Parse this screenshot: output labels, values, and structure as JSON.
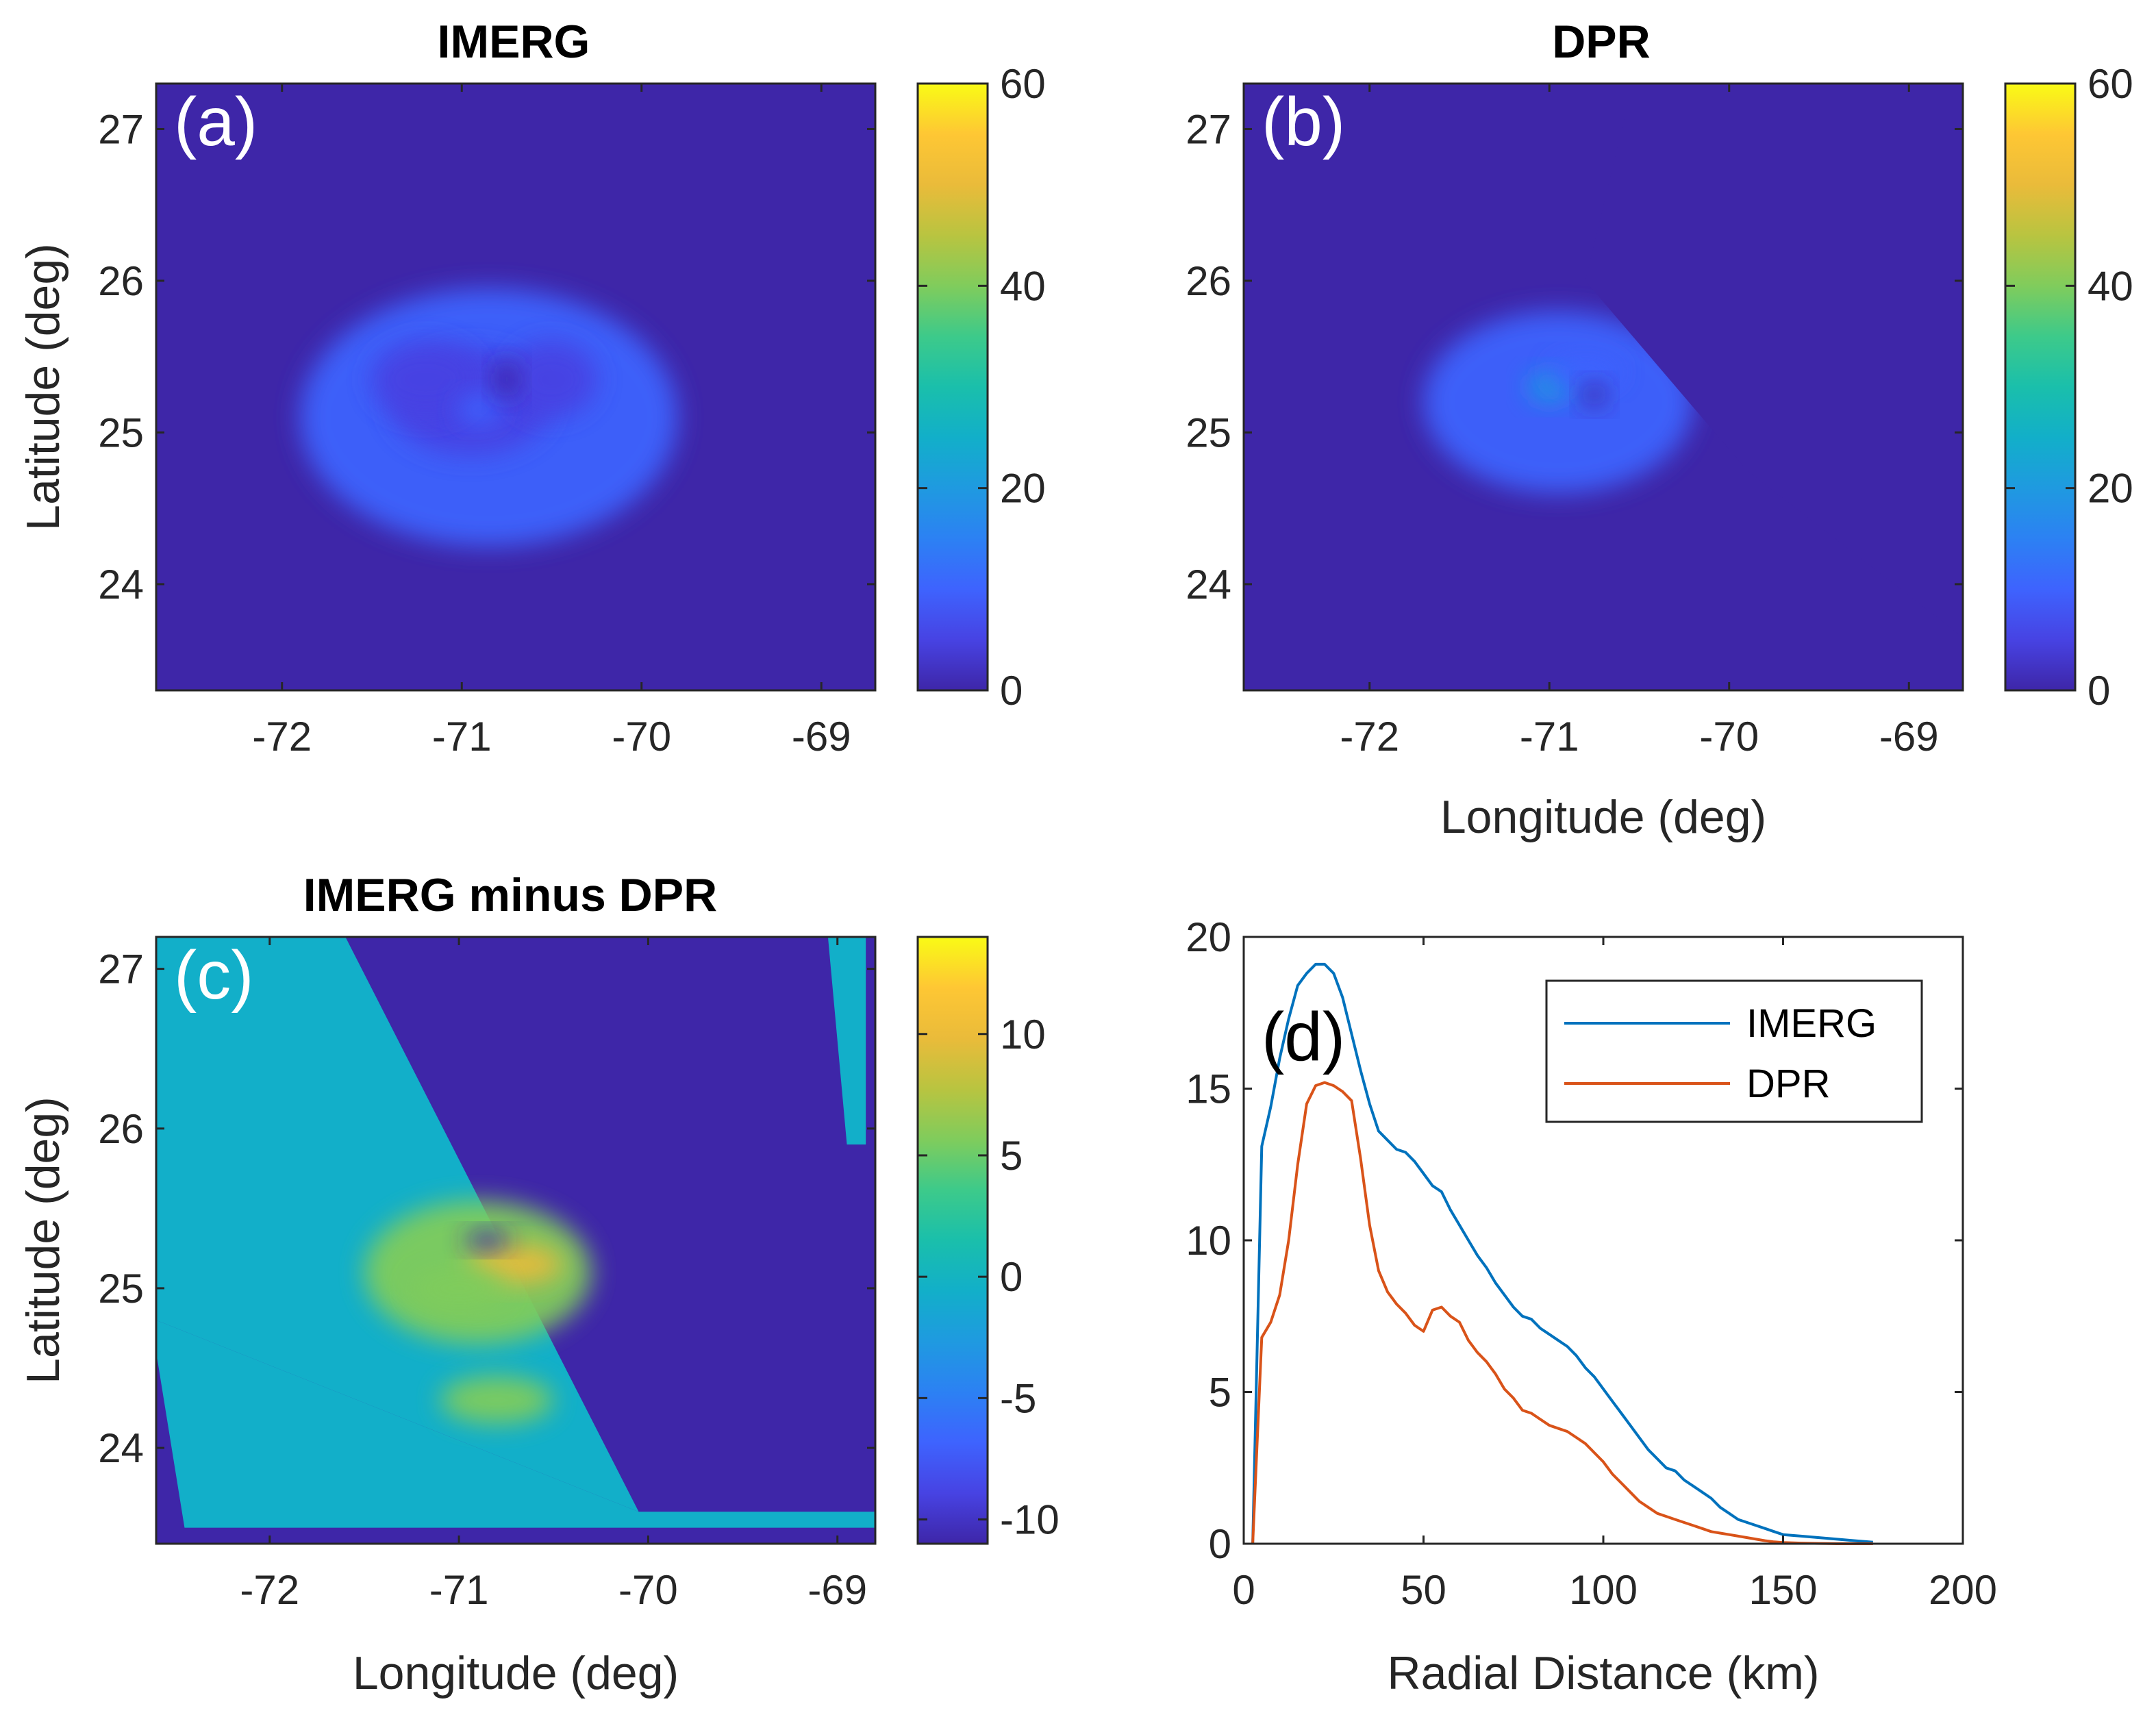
{
  "colors": {
    "parula": [
      "#3e26a8",
      "#4743e3",
      "#3e63fe",
      "#2c81f3",
      "#1f9ae0",
      "#12afc9",
      "#1abfab",
      "#3dca8a",
      "#80cc5c",
      "#b9c440",
      "#eabb3a",
      "#fec734",
      "#f9fb15"
    ],
    "imerg": "#0072bd",
    "dpr": "#d95319",
    "axis": "#262626"
  },
  "chart_data": [
    {
      "id": "a",
      "type": "heatmap",
      "panel_label": "(a)",
      "title": "IMERG",
      "xlabel": "",
      "ylabel": "Latitude (deg)",
      "xlim": [
        -72.7,
        -68.7
      ],
      "ylim": [
        23.3,
        27.3
      ],
      "xticks": [
        -72,
        -71,
        -70,
        -69
      ],
      "xticklabels": [
        "-72",
        "-71",
        "-70",
        "-69"
      ],
      "yticks": [
        24,
        25,
        26,
        27
      ],
      "yticklabels": [
        "24",
        "25",
        "26",
        "27"
      ],
      "clim": [
        0,
        60
      ],
      "cticks": [
        0,
        20,
        40,
        60
      ],
      "cticklabels": [
        "0",
        "20",
        "40",
        "60"
      ],
      "field": {
        "background": 0,
        "blobs": [
          {
            "lon": -70.85,
            "lat": 25.1,
            "rx": 1.05,
            "ry": 0.85,
            "v": 8
          },
          {
            "lon": -70.95,
            "lat": 25.2,
            "rx": 0.45,
            "ry": 0.35,
            "v": 6
          },
          {
            "lon": -70.5,
            "lat": 25.35,
            "rx": 0.25,
            "ry": 0.25,
            "v": 4
          },
          {
            "lon": -71.2,
            "lat": 25.35,
            "rx": 0.3,
            "ry": 0.25,
            "v": 3
          },
          {
            "lon": -70.9,
            "lat": 25.15,
            "rx": 0.12,
            "ry": 0.1,
            "v": 8
          },
          {
            "lon": -70.75,
            "lat": 25.35,
            "rx": 0.07,
            "ry": 0.12,
            "v": -8
          }
        ]
      }
    },
    {
      "id": "b",
      "type": "heatmap",
      "panel_label": "(b)",
      "title": "DPR",
      "xlabel": "Longitude (deg)",
      "ylabel": "",
      "xlim": [
        -72.7,
        -68.7
      ],
      "ylim": [
        23.3,
        27.3
      ],
      "xticks": [
        -72,
        -71,
        -70,
        -69
      ],
      "xticklabels": [
        "-72",
        "-71",
        "-70",
        "-69"
      ],
      "yticks": [
        24,
        25,
        26,
        27
      ],
      "yticklabels": [
        "24",
        "25",
        "26",
        "27"
      ],
      "clim": [
        0,
        60
      ],
      "cticks": [
        0,
        20,
        40,
        60
      ],
      "cticklabels": [
        "0",
        "20",
        "40",
        "60"
      ],
      "field": {
        "background": 0,
        "swath_edge": [
          [
            -70.8,
            26.0
          ],
          [
            -69.9,
            24.75
          ]
        ],
        "blobs": [
          {
            "lon": -70.95,
            "lat": 25.2,
            "rx": 0.75,
            "ry": 0.6,
            "v": 9
          },
          {
            "lon": -71.0,
            "lat": 25.3,
            "rx": 0.12,
            "ry": 0.1,
            "v": 20
          },
          {
            "lon": -70.8,
            "lat": 25.4,
            "rx": 0.2,
            "ry": 0.1,
            "v": 9
          },
          {
            "lon": -70.75,
            "lat": 25.25,
            "rx": 0.07,
            "ry": 0.08,
            "v": -9
          }
        ]
      }
    },
    {
      "id": "c",
      "type": "heatmap",
      "panel_label": "(c)",
      "title": "IMERG minus DPR",
      "xlabel": "Longitude (deg)",
      "ylabel": "Latitude (deg)",
      "xlim": [
        -72.6,
        -68.8
      ],
      "ylim": [
        23.4,
        27.2
      ],
      "xticks": [
        -72,
        -71,
        -70,
        -69
      ],
      "xticklabels": [
        "-72",
        "-71",
        "-70",
        "-69"
      ],
      "yticks": [
        24,
        25,
        26,
        27
      ],
      "yticklabels": [
        "24",
        "25",
        "26",
        "27"
      ],
      "clim": [
        -11,
        14
      ],
      "cticks": [
        -10,
        -5,
        0,
        5,
        10
      ],
      "cticklabels": [
        "-10",
        "-5",
        "0",
        "5",
        "10"
      ],
      "field": {
        "background": 0,
        "outside": -11,
        "swath": [
          [
            -71.6,
            27.2
          ],
          [
            -68.8,
            27.2
          ],
          [
            -68.8,
            23.6
          ],
          [
            -70.05,
            23.6
          ],
          [
            -72.6,
            24.8
          ],
          [
            -72.6,
            23.4
          ],
          [
            -68.8,
            23.4
          ]
        ],
        "blobs": [
          {
            "lon": -70.9,
            "lat": 25.1,
            "rx": 0.6,
            "ry": 0.45,
            "v": 6
          },
          {
            "lon": -70.7,
            "lat": 25.15,
            "rx": 0.25,
            "ry": 0.12,
            "v": 10
          },
          {
            "lon": -71.0,
            "lat": 25.0,
            "rx": 0.25,
            "ry": 0.12,
            "v": 6
          },
          {
            "lon": -70.8,
            "lat": 24.3,
            "rx": 0.3,
            "ry": 0.15,
            "v": 6
          },
          {
            "lon": -70.85,
            "lat": 25.3,
            "rx": 0.12,
            "ry": 0.06,
            "v": -12
          }
        ]
      }
    },
    {
      "id": "d",
      "type": "line",
      "panel_label": "(d)",
      "title": "",
      "xlabel": "Radial Distance (km)",
      "ylabel": "",
      "xlim": [
        0,
        200
      ],
      "ylim": [
        0,
        20
      ],
      "xticks": [
        0,
        50,
        100,
        150,
        200
      ],
      "xticklabels": [
        "0",
        "50",
        "100",
        "150",
        "200"
      ],
      "yticks": [
        0,
        5,
        10,
        15,
        20
      ],
      "yticklabels": [
        "0",
        "5",
        "10",
        "15",
        "20"
      ],
      "legend": "top-right",
      "series": [
        {
          "name": "IMERG",
          "color": "#0072bd",
          "x": [
            2.5,
            5,
            7.5,
            10,
            12.5,
            15,
            17.5,
            20,
            22.5,
            25,
            27.5,
            30,
            32.5,
            35,
            37.5,
            40,
            42.5,
            45,
            47.5,
            50,
            52.5,
            55,
            57.5,
            60,
            62.5,
            65,
            67.5,
            70,
            72.5,
            75,
            77.5,
            80,
            82.5,
            85,
            87.5,
            90,
            92.5,
            95,
            97.5,
            100,
            102.5,
            105,
            107.5,
            110,
            112.5,
            115,
            117.5,
            120,
            122.5,
            125,
            127.5,
            130,
            132.5,
            135,
            137.5,
            140,
            142.5,
            145,
            147.5,
            150,
            155,
            160,
            165,
            170,
            175
          ],
          "y": [
            0.0,
            13.1,
            14.4,
            16.0,
            17.3,
            18.4,
            18.8,
            19.1,
            19.1,
            18.8,
            18.0,
            16.8,
            15.6,
            14.5,
            13.6,
            13.3,
            13.0,
            12.9,
            12.6,
            12.2,
            11.8,
            11.6,
            11.0,
            10.5,
            10.0,
            9.5,
            9.1,
            8.6,
            8.2,
            7.8,
            7.5,
            7.4,
            7.1,
            6.9,
            6.7,
            6.5,
            6.2,
            5.8,
            5.5,
            5.1,
            4.7,
            4.3,
            3.9,
            3.5,
            3.1,
            2.8,
            2.5,
            2.4,
            2.1,
            1.9,
            1.7,
            1.5,
            1.2,
            1.0,
            0.8,
            0.7,
            0.6,
            0.5,
            0.4,
            0.3,
            0.25,
            0.2,
            0.15,
            0.1,
            0.05
          ]
        },
        {
          "name": "DPR",
          "color": "#d95319",
          "x": [
            2.5,
            5,
            7.5,
            10,
            12.5,
            15,
            17.5,
            20,
            22.5,
            25,
            27.5,
            30,
            32.5,
            35,
            37.5,
            40,
            42.5,
            45,
            47.5,
            50,
            52.5,
            55,
            57.5,
            60,
            62.5,
            65,
            67.5,
            70,
            72.5,
            75,
            77.5,
            80,
            82.5,
            85,
            87.5,
            90,
            92.5,
            95,
            97.5,
            100,
            102.5,
            105,
            107.5,
            110,
            112.5,
            115,
            117.5,
            120,
            122.5,
            125,
            127.5,
            130,
            132.5,
            135,
            137.5,
            140,
            142.5,
            145,
            147.5,
            150,
            155,
            160,
            165,
            170,
            175
          ],
          "y": [
            0.0,
            6.8,
            7.3,
            8.2,
            10.0,
            12.5,
            14.5,
            15.1,
            15.2,
            15.1,
            14.9,
            14.6,
            12.7,
            10.5,
            9.0,
            8.3,
            7.9,
            7.6,
            7.2,
            7.0,
            7.7,
            7.8,
            7.5,
            7.3,
            6.7,
            6.3,
            6.0,
            5.6,
            5.1,
            4.8,
            4.4,
            4.3,
            4.1,
            3.9,
            3.8,
            3.7,
            3.5,
            3.3,
            3.0,
            2.7,
            2.3,
            2.0,
            1.7,
            1.4,
            1.2,
            1.0,
            0.9,
            0.8,
            0.7,
            0.6,
            0.5,
            0.4,
            0.35,
            0.3,
            0.25,
            0.2,
            0.15,
            0.1,
            0.06,
            0.04,
            0.02,
            0.01,
            0.0,
            0.0,
            0.0
          ]
        }
      ]
    }
  ]
}
